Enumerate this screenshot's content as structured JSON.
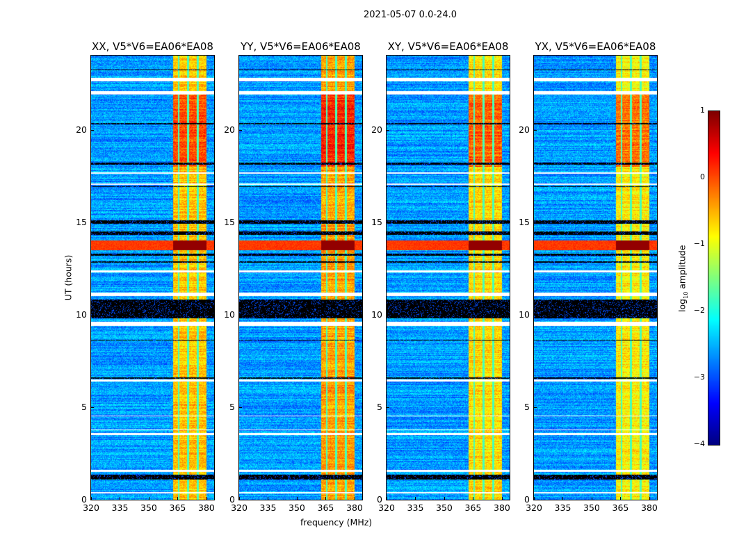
{
  "chart_data": {
    "type": "heatmap",
    "title": "2021-05-07 0.0-24.0",
    "xlabel": "frequency (MHz)",
    "ylabel": "UT (hours)",
    "xlim": [
      320,
      384
    ],
    "ylim": [
      0,
      24
    ],
    "xticks": [
      "320",
      "335",
      "350",
      "365",
      "380"
    ],
    "xtick_values": [
      320,
      335,
      350,
      365,
      380
    ],
    "yticks": [
      "0",
      "5",
      "10",
      "15",
      "20"
    ],
    "ytick_values": [
      0,
      5,
      10,
      15,
      20
    ],
    "panels": [
      {
        "title": "XX, V5*V6=EA06*EA08",
        "band_level": -0.6,
        "seed": 11
      },
      {
        "title": "YY, V5*V6=EA06*EA08",
        "band_level": -0.4,
        "seed": 23
      },
      {
        "title": "XY, V5*V6=EA06*EA08",
        "band_level": -0.7,
        "seed": 37
      },
      {
        "title": "YX, V5*V6=EA06*EA08",
        "band_level": -0.8,
        "seed": 53
      }
    ],
    "features": {
      "background_log_amplitude": -2.6,
      "bright_band_MHz": [
        360,
        380
      ],
      "band_gap_lines_MHz": [
        365.5,
        370.5,
        375.5
      ],
      "strong_rfi_hours": [
        13.5,
        14.0
      ],
      "strong_band_hours": [
        18.0,
        22.0
      ],
      "flagged_white_hours": [
        [
          0.35,
          0.4
        ],
        [
          1.5,
          1.6
        ],
        [
          3.5,
          3.6
        ],
        [
          3.75,
          3.8
        ],
        [
          4.5,
          4.55
        ],
        [
          6.4,
          6.5
        ],
        [
          9.4,
          9.6
        ],
        [
          11.0,
          11.2
        ],
        [
          12.3,
          12.4
        ],
        [
          17.0,
          17.1
        ],
        [
          17.6,
          17.7
        ],
        [
          21.9,
          22.1
        ],
        [
          22.6,
          22.8
        ]
      ],
      "zero_black_hours": [
        [
          1.1,
          1.35
        ],
        [
          6.55,
          6.6
        ],
        [
          8.6,
          8.65
        ],
        [
          9.8,
          10.8
        ],
        [
          12.8,
          12.9
        ],
        [
          13.2,
          13.3
        ],
        [
          14.3,
          14.5
        ],
        [
          14.9,
          15.1
        ],
        [
          16.9,
          16.95
        ],
        [
          18.1,
          18.2
        ],
        [
          20.3,
          20.35
        ],
        [
          23.2,
          23.25
        ]
      ],
      "colormap": "jet"
    },
    "colorbar": {
      "label_main": "log",
      "label_sub": "10",
      "label_rest": " amplitude",
      "range": [
        -4,
        1
      ],
      "ticks": [
        "1",
        "0",
        "−1",
        "−2",
        "−3",
        "−4"
      ],
      "tick_values": [
        1,
        0,
        -1,
        -2,
        -3,
        -4
      ]
    }
  }
}
